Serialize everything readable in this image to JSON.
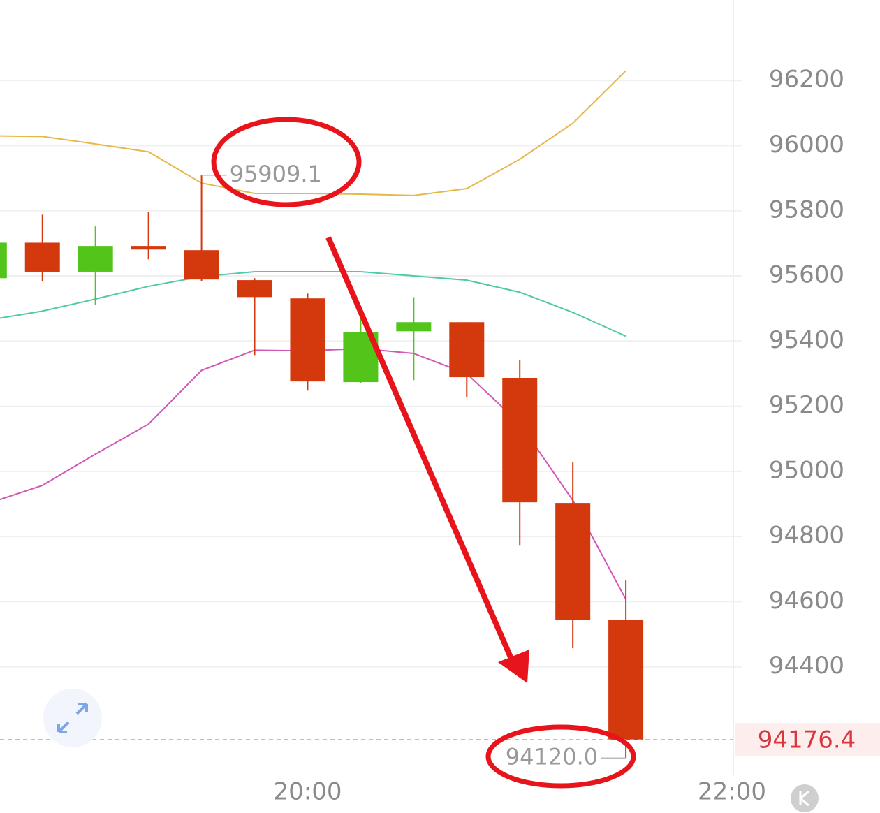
{
  "chart_data": {
    "type": "candlestick",
    "x": [
      "18:30",
      "18:45",
      "19:00",
      "19:15",
      "19:30",
      "19:45",
      "20:00",
      "20:15",
      "20:30",
      "20:45",
      "21:00",
      "21:15",
      "21:30"
    ],
    "open": [
      95593,
      95702,
      95613,
      95692,
      95679,
      95587,
      95531,
      95274,
      95430,
      95458,
      95287,
      94903,
      94543
    ],
    "high": [
      95702,
      95788,
      95752,
      95797,
      95909.1,
      95593,
      95546,
      95471,
      95535,
      95458,
      95342,
      95029,
      94665
    ],
    "low": [
      95593,
      95583,
      95512,
      95651,
      95585,
      95357,
      95248,
      95272,
      95280,
      95229,
      94772,
      94457,
      94120
    ],
    "close": [
      95702,
      95613,
      95692,
      95681,
      95589,
      95535,
      95276,
      95428,
      95458,
      95289,
      94905,
      94545,
      94176.4
    ],
    "low_label": "94120.0",
    "up_color": "#52c41a",
    "down_color": "#d4380d",
    "series": [
      {
        "color": "#e6b74a",
        "values": [
          96030,
          96028,
          96005,
          95981,
          95885,
          95853,
          95853,
          95851,
          95847,
          95868,
          95958,
          96069,
          96230
        ]
      },
      {
        "color": "#4fc9a8",
        "values": [
          95465,
          95492,
          95529,
          95568,
          95598,
          95613,
          95613,
          95613,
          95600,
          95587,
          95550,
          95488,
          95415
        ]
      },
      {
        "color": "#d158b8",
        "values": [
          94903,
          94957,
          95053,
          95145,
          95310,
          95372,
          95370,
          95377,
          95362,
          95300,
          95147,
          94911,
          94607
        ]
      }
    ],
    "xlim": [
      "18:33",
      "22:00"
    ],
    "xticks": [
      "20:00",
      "22:00"
    ],
    "ylim": [
      94067,
      96447
    ],
    "yticks": [
      94400,
      94600,
      94800,
      95000,
      95200,
      95400,
      95600,
      95800,
      96000,
      96200
    ],
    "grid": true
  }
}
